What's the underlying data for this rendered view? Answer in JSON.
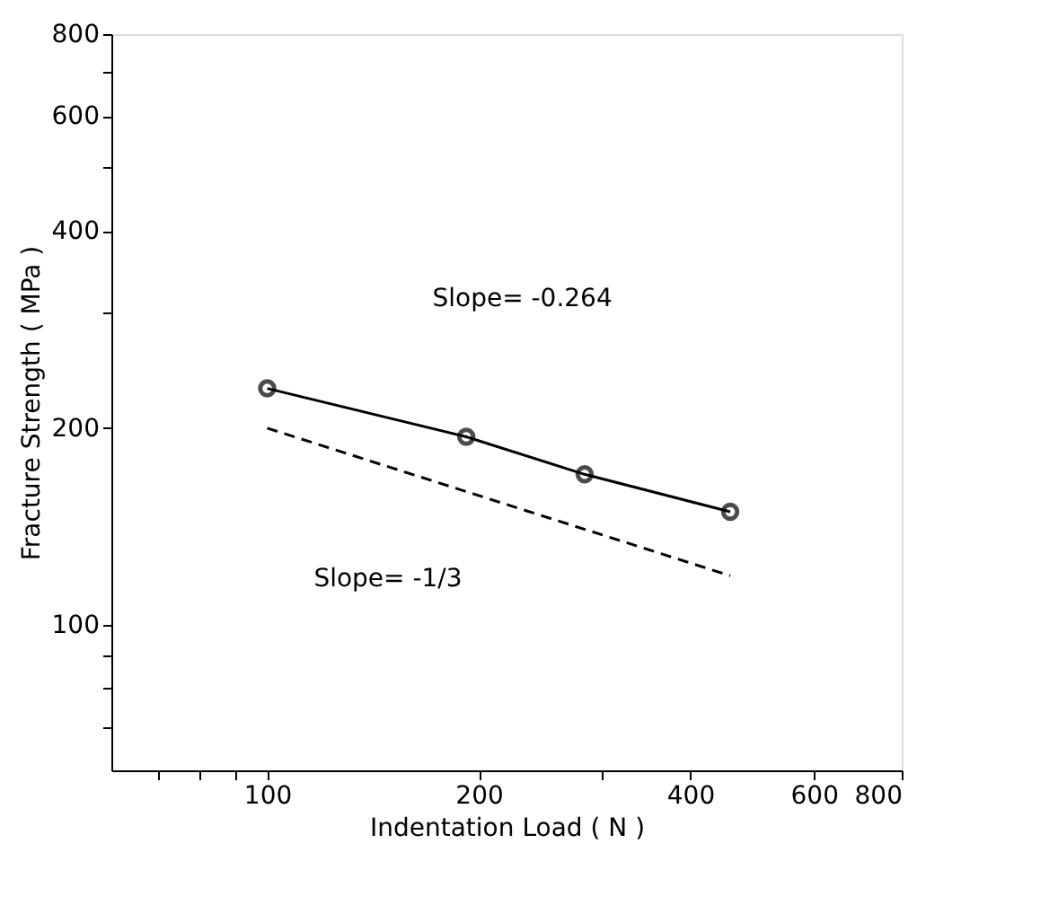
{
  "chart_data": {
    "type": "line",
    "xlabel": "Indentation Load ( N )",
    "ylabel": "Fracture Strength ( MPa )",
    "log": "xy",
    "grid": false,
    "xlim": [
      60,
      800
    ],
    "ylim": [
      60,
      800
    ],
    "xticks": [
      {
        "value": 70,
        "label": null
      },
      {
        "value": 80,
        "label": null
      },
      {
        "value": 90,
        "label": null
      },
      100,
      200,
      {
        "value": 300,
        "label": null
      },
      400,
      600,
      800
    ],
    "yticks": [
      {
        "value": 70,
        "label": null
      },
      {
        "value": 80,
        "label": null
      },
      {
        "value": 90,
        "label": null
      },
      100,
      200,
      {
        "value": 300,
        "label": null
      },
      400,
      {
        "value": 500,
        "label": null
      },
      600,
      {
        "value": 700,
        "label": null
      },
      800
    ],
    "series": [
      {
        "color": "#000000",
        "x": [
          100,
          192,
          283,
          456
        ],
        "values": [
          230,
          194,
          170,
          149
        ],
        "marker": "circle",
        "line_style": "solid"
      },
      {
        "type": "line",
        "color": "#000000",
        "x": [
          100,
          456
        ],
        "values": [
          200,
          119
        ],
        "marker": "none",
        "line_style": "dashed"
      }
    ],
    "annotations": [
      "Slope= -0.264",
      "Slope= -1/3"
    ]
  }
}
